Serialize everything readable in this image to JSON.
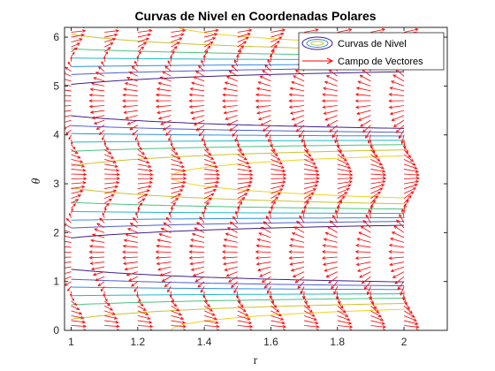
{
  "chart_data": {
    "type": "line",
    "title": "Curvas de Nivel en Coordenadas Polares",
    "xlabel": "r",
    "ylabel": "θ",
    "xlim": [
      0.98,
      2.13
    ],
    "ylim": [
      0,
      6.2
    ],
    "xticks": [
      "1",
      "1.2",
      "1.4",
      "1.6",
      "1.8",
      "2"
    ],
    "yticks": [
      "0",
      "1",
      "2",
      "3",
      "4",
      "5",
      "6"
    ],
    "grid": false,
    "legend_position": "top-right",
    "legend": [
      "Curvas de Nivel",
      "Campo de Vectores"
    ],
    "series": [
      {
        "name": "Curvas de Nivel",
        "kind": "contour",
        "levels": [
          {
            "level": -0.8,
            "color": "#3d1f8c"
          },
          {
            "level": -0.5,
            "color": "#4a5fd0"
          },
          {
            "level": -0.2,
            "color": "#2f8ee0"
          },
          {
            "level": 0.15,
            "color": "#1fb7c9"
          },
          {
            "level": 0.5,
            "color": "#49c27f"
          },
          {
            "level": 0.9,
            "color": "#c8c32c"
          },
          {
            "level": 1.3,
            "color": "#f2d023"
          }
        ]
      },
      {
        "name": "Campo de Vectores",
        "kind": "quiver",
        "color": "#ff0000",
        "r_values": [
          1.0,
          1.1,
          1.2,
          1.3,
          1.4,
          1.5,
          1.6,
          1.7,
          1.8,
          1.9,
          2.0
        ],
        "theta_step": 0.1
      }
    ]
  }
}
